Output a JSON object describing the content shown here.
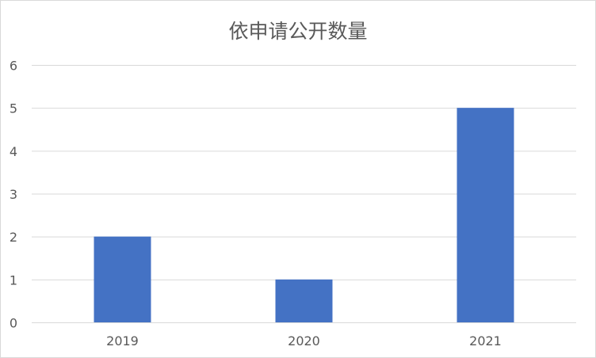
{
  "chart_data": {
    "type": "bar",
    "title": "依申请公开数量",
    "categories": [
      "2019",
      "2020",
      "2021"
    ],
    "values": [
      2,
      1,
      5
    ],
    "ylim": [
      0,
      6
    ],
    "yticks": [
      "0",
      "1",
      "2",
      "3",
      "4",
      "5",
      "6"
    ],
    "grid": true,
    "legend": "none",
    "colors": {
      "bar": "#4472C4",
      "grid": "#d9d9d9",
      "text": "#595959"
    }
  }
}
